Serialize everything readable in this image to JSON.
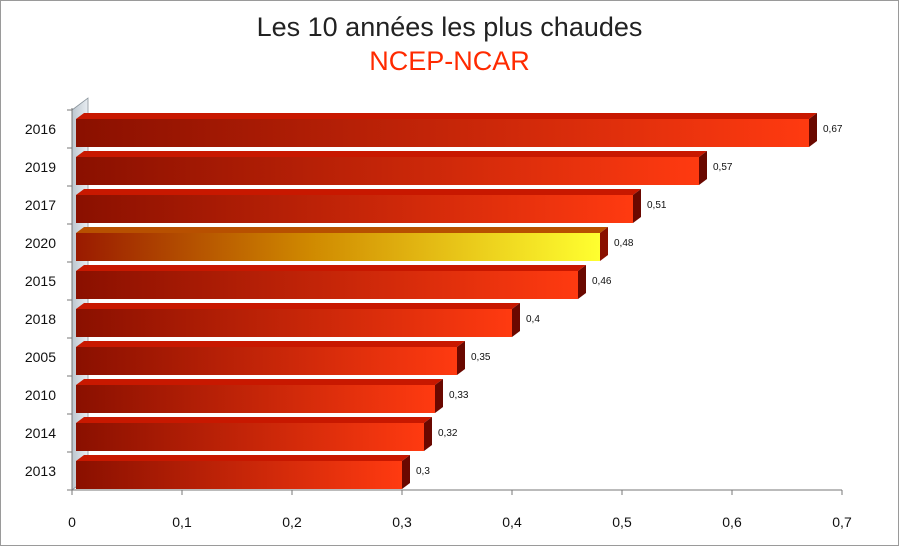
{
  "chart_data": {
    "type": "bar",
    "orientation": "horizontal",
    "title": "Les 10 années les plus chaudes",
    "subtitle": "NCEP-NCAR",
    "categories": [
      "2016",
      "2019",
      "2017",
      "2020",
      "2015",
      "2018",
      "2005",
      "2010",
      "2014",
      "2013"
    ],
    "values": [
      0.67,
      0.57,
      0.51,
      0.48,
      0.46,
      0.4,
      0.35,
      0.33,
      0.32,
      0.3
    ],
    "data_labels": [
      "0,67",
      "0,57",
      "0,51",
      "0,48",
      "0,46",
      "0,4",
      "0,35",
      "0,33",
      "0,32",
      "0,3"
    ],
    "xlim": [
      0,
      0.7
    ],
    "x_ticks": [
      0,
      0.1,
      0.2,
      0.3,
      0.4,
      0.5,
      0.6,
      0.7
    ],
    "x_tick_labels": [
      "0",
      "0,1",
      "0,2",
      "0,3",
      "0,4",
      "0,5",
      "0,6",
      "0,7"
    ],
    "xlabel": "",
    "ylabel": "",
    "highlight_category": "2020",
    "colors": {
      "bar_start": "#8a1000",
      "bar_end": "#ff3a10",
      "bar_top": "#c81800",
      "bar_side": "#6a0800",
      "highlight_start": "#9a1a00",
      "highlight_end": "#ffff30",
      "highlight_top": "#b85000",
      "highlight_side": "#8a1000",
      "subtitle": "#ff2a00"
    },
    "grid": false,
    "legend": "none"
  }
}
